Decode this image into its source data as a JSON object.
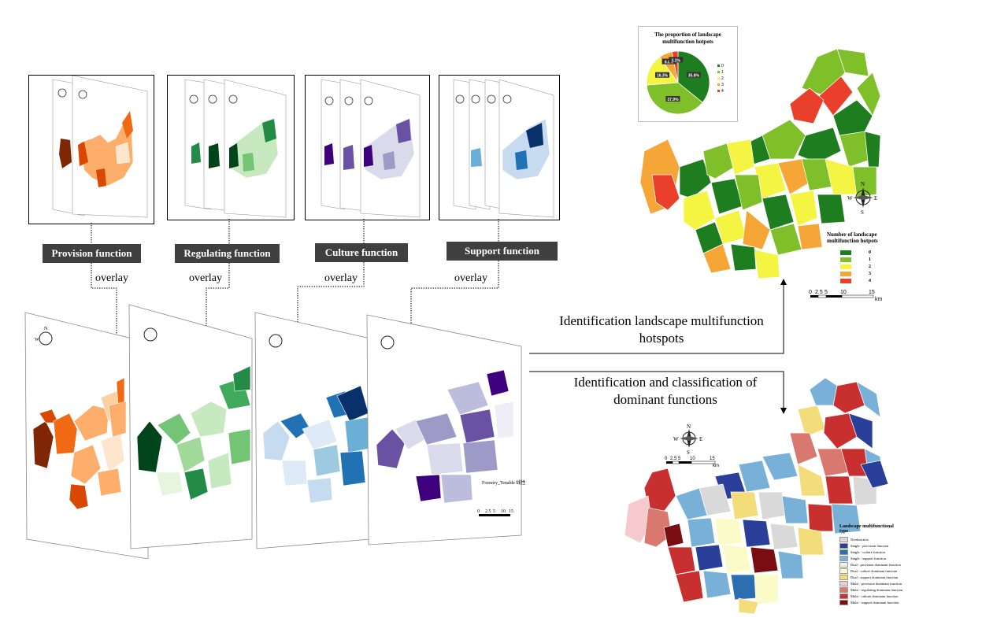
{
  "functions": [
    {
      "label": "Provision function",
      "colors": [
        "#7f2704",
        "#d94801",
        "#f16913",
        "#fdae6b",
        "#fee6ce"
      ]
    },
    {
      "label": "Regulating function",
      "colors": [
        "#00441b",
        "#238b45",
        "#74c476",
        "#c7e9c0",
        "#f7fcf5"
      ]
    },
    {
      "label": "Culture function",
      "colors": [
        "#3f007d",
        "#6a51a3",
        "#9e9ac8",
        "#dadaeb",
        "#fcfbfd"
      ]
    },
    {
      "label": "Support function",
      "colors": [
        "#08306b",
        "#2171b5",
        "#6baed6",
        "#c6dbef",
        "#f7fbff"
      ]
    }
  ],
  "overlay_label": "overlay",
  "arrows": {
    "hotspots": "Identification  landscape multifunction hotspots",
    "dominant": "Identification  and classification  of dominant functions"
  },
  "compass": {
    "n": "N",
    "s": "S",
    "e": "E",
    "w": "W"
  },
  "hotspot_map": {
    "pie_title": "The proportion of landscape multifunction hotpots",
    "pie_legend": [
      "0",
      "1",
      "2",
      "3",
      "4"
    ],
    "legend_title": "Number of landscape multifunction hotpots",
    "legend": [
      {
        "label": "0",
        "color": "#1e7d1e"
      },
      {
        "label": "1",
        "color": "#7fbf2a"
      },
      {
        "label": "2",
        "color": "#f4f442"
      },
      {
        "label": "3",
        "color": "#f5a636"
      },
      {
        "label": "4",
        "color": "#ea3f2a"
      }
    ],
    "scale_ticks": [
      "0",
      "2.5",
      "5",
      "10",
      "15"
    ],
    "scale_unit": "km"
  },
  "chart_data": {
    "type": "pie",
    "title": "The proportion of landscape multifunction hotpots",
    "categories": [
      "0",
      "1",
      "2",
      "3",
      "4"
    ],
    "values": [
      35.8,
      37.9,
      16.3,
      6.8,
      3.1
    ],
    "labels": [
      "35.8%",
      "37.9%",
      "16.3%",
      "6.8%",
      "3.1%"
    ],
    "colors": [
      "#1e7d1e",
      "#7fbf2a",
      "#f4f442",
      "#f5a636",
      "#ea3f2a"
    ]
  },
  "dominant_map": {
    "legend_title": "Landscape multifunctional type",
    "scale_ticks": [
      "0",
      "2.5",
      "5",
      "10",
      "15"
    ],
    "scale_unit": "km",
    "legend": [
      {
        "label": "Nonfunction",
        "color": "#d9d9d9"
      },
      {
        "label": "Single - provision function",
        "color": "#2a3f9a"
      },
      {
        "label": "Single - culture function",
        "color": "#2c6fb0"
      },
      {
        "label": "Single - support function",
        "color": "#79b0d8"
      },
      {
        "label": "Dual - provision dominant function",
        "color": "#e8f4e8"
      },
      {
        "label": "Dual - culture dominant function",
        "color": "#fbfbc8"
      },
      {
        "label": "Dual - support dominant function",
        "color": "#f3dc7a"
      },
      {
        "label": "Multi - provision dominant function",
        "color": "#f6c9cc"
      },
      {
        "label": "Multi - regulating dominant function",
        "color": "#d9786e"
      },
      {
        "label": "Multi - culture dominant function",
        "color": "#c8302f"
      },
      {
        "label": "Multi - support dominant function",
        "color": "#7a0d12"
      }
    ]
  },
  "stack_scale": {
    "ticks": [
      "0",
      "2.5",
      "5",
      "10",
      "15"
    ]
  },
  "purple_legend_title": "Forestry_Tenable 线性"
}
